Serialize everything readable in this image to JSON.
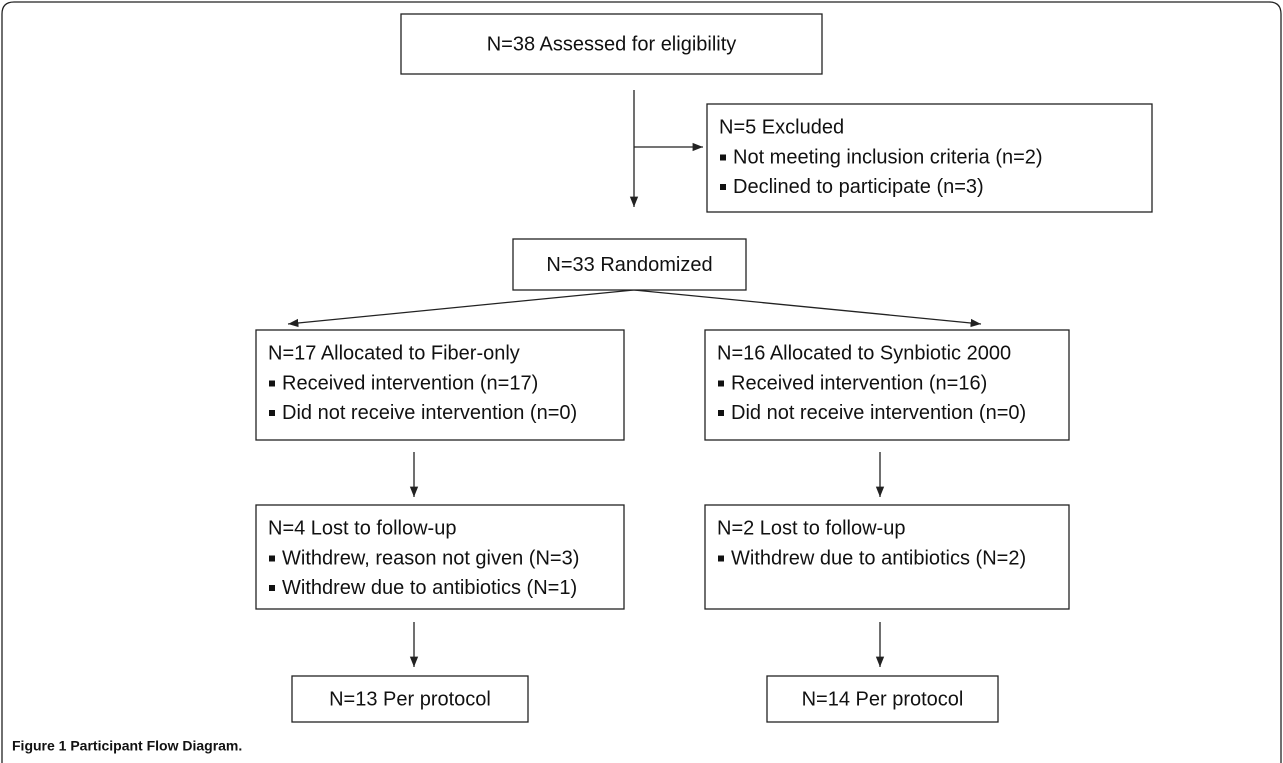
{
  "nodes": [
    {
      "title": "N=38 Assessed for eligibility",
      "items": []
    },
    {
      "title": "N=5 Excluded",
      "items": [
        "Not meeting inclusion criteria (n=2)",
        "Declined to participate (n=3)"
      ]
    },
    {
      "title": "N=33 Randomized",
      "items": []
    },
    {
      "title": "N=17 Allocated to Fiber-only",
      "items": [
        "Received intervention (n=17)",
        "Did not receive intervention (n=0)"
      ]
    },
    {
      "title": "N=16 Allocated to Synbiotic 2000",
      "items": [
        "Received intervention (n=16)",
        "Did not receive intervention (n=0)"
      ]
    },
    {
      "title": "N=4 Lost to follow-up",
      "items": [
        "Withdrew, reason not given (N=3)",
        "Withdrew due to antibiotics (N=1)"
      ]
    },
    {
      "title": "N=2 Lost to follow-up",
      "items": [
        "Withdrew due to antibiotics (N=2)"
      ]
    },
    {
      "title": "N=13 Per protocol",
      "items": []
    },
    {
      "title": "N=14 Per protocol",
      "items": []
    }
  ],
  "caption": "Figure 1 Participant Flow Diagram."
}
